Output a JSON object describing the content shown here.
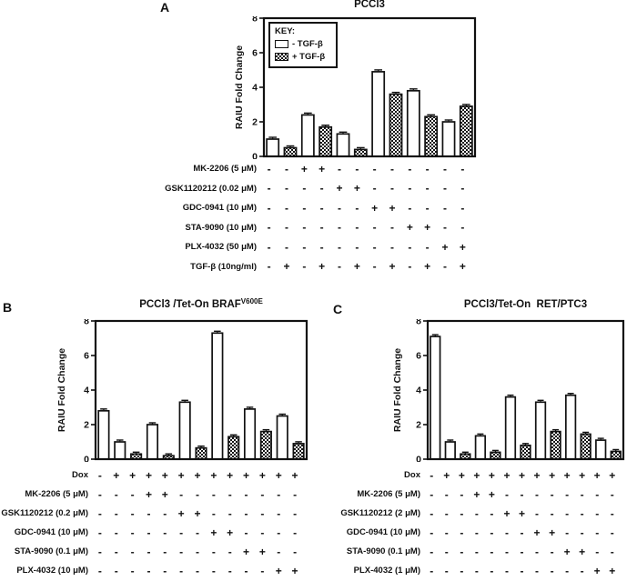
{
  "figure": {
    "background": "#ffffff",
    "ink_color": "#111111"
  },
  "key": {
    "title": "KEY:",
    "entries": [
      {
        "label": "- TGF-β",
        "style": "white"
      },
      {
        "label": "+ TGF-β",
        "style": "hatched"
      }
    ]
  },
  "chart_data": [
    {
      "type": "bar",
      "panel_label": "A",
      "title": "PCCl3",
      "title_sup": "",
      "ylabel": "RAIU Fold Change",
      "ylim": [
        0,
        8
      ],
      "yticks": [
        0,
        2,
        4,
        6,
        8
      ],
      "legend_position": "top-left-inside",
      "bar_style_meaning": {
        "white": "- TGF-β",
        "hatched": "+ TGF-β"
      },
      "bars": [
        {
          "value": 1.0,
          "err": 0.1,
          "style": "white"
        },
        {
          "value": 0.5,
          "err": 0.05,
          "style": "hatched"
        },
        {
          "value": 2.4,
          "err": 0.1,
          "style": "white"
        },
        {
          "value": 1.7,
          "err": 0.08,
          "style": "hatched"
        },
        {
          "value": 1.3,
          "err": 0.08,
          "style": "white"
        },
        {
          "value": 0.4,
          "err": 0.05,
          "style": "hatched"
        },
        {
          "value": 4.9,
          "err": 0.1,
          "style": "white"
        },
        {
          "value": 3.6,
          "err": 0.08,
          "style": "hatched"
        },
        {
          "value": 3.8,
          "err": 0.08,
          "style": "white"
        },
        {
          "value": 2.3,
          "err": 0.08,
          "style": "hatched"
        },
        {
          "value": 2.0,
          "err": 0.08,
          "style": "white"
        },
        {
          "value": 2.9,
          "err": 0.08,
          "style": "hatched"
        }
      ],
      "treatment_matrix": [
        {
          "label": "MK-2206 (5 μM)",
          "signs": [
            "-",
            "-",
            "+",
            "+",
            "-",
            "-",
            "-",
            "-",
            "-",
            "-",
            "-",
            "-"
          ]
        },
        {
          "label": "GSK1120212 (0.02 μM)",
          "signs": [
            "-",
            "-",
            "-",
            "-",
            "+",
            "+",
            "-",
            "-",
            "-",
            "-",
            "-",
            "-"
          ]
        },
        {
          "label": "GDC-0941 (10 μM)",
          "signs": [
            "-",
            "-",
            "-",
            "-",
            "-",
            "-",
            "+",
            "+",
            "-",
            "-",
            "-",
            "-"
          ]
        },
        {
          "label": "STA-9090 (10 μM)",
          "signs": [
            "-",
            "-",
            "-",
            "-",
            "-",
            "-",
            "-",
            "-",
            "+",
            "+",
            "-",
            "-"
          ]
        },
        {
          "label": "PLX-4032 (50 μM)",
          "signs": [
            "-",
            "-",
            "-",
            "-",
            "-",
            "-",
            "-",
            "-",
            "-",
            "-",
            "+",
            "+"
          ]
        },
        {
          "label": "TGF-β (10ng/ml)",
          "signs": [
            "-",
            "+",
            "-",
            "+",
            "-",
            "+",
            "-",
            "+",
            "-",
            "+",
            "-",
            "+"
          ]
        }
      ]
    },
    {
      "type": "bar",
      "panel_label": "B",
      "title": "PCCl3 /Tet-On BRAF",
      "title_sup": "V600E",
      "ylabel": "RAIU Fold Change",
      "ylim": [
        0,
        8
      ],
      "yticks": [
        0,
        2,
        4,
        6,
        8
      ],
      "bar_style_meaning": {
        "white": "- TGF-β",
        "hatched": "+ TGF-β"
      },
      "bars": [
        {
          "value": 2.8,
          "err": 0.08,
          "style": "white"
        },
        {
          "value": 1.0,
          "err": 0.08,
          "style": "white"
        },
        {
          "value": 0.3,
          "err": 0.05,
          "style": "hatched"
        },
        {
          "value": 2.0,
          "err": 0.08,
          "style": "white"
        },
        {
          "value": 0.2,
          "err": 0.05,
          "style": "hatched"
        },
        {
          "value": 3.3,
          "err": 0.08,
          "style": "white"
        },
        {
          "value": 0.65,
          "err": 0.05,
          "style": "hatched"
        },
        {
          "value": 7.3,
          "err": 0.1,
          "style": "white"
        },
        {
          "value": 1.3,
          "err": 0.06,
          "style": "hatched"
        },
        {
          "value": 2.9,
          "err": 0.08,
          "style": "white"
        },
        {
          "value": 1.6,
          "err": 0.06,
          "style": "hatched"
        },
        {
          "value": 2.5,
          "err": 0.08,
          "style": "white"
        },
        {
          "value": 0.9,
          "err": 0.05,
          "style": "hatched"
        }
      ],
      "treatment_matrix": [
        {
          "label": "Dox",
          "signs": [
            "-",
            "+",
            "+",
            "+",
            "+",
            "+",
            "+",
            "+",
            "+",
            "+",
            "+",
            "+",
            "+"
          ]
        },
        {
          "label": "MK-2206 (5 μM)",
          "signs": [
            "-",
            "-",
            "-",
            "+",
            "+",
            "-",
            "-",
            "-",
            "-",
            "-",
            "-",
            "-",
            "-"
          ]
        },
        {
          "label": "GSK1120212 (0.2 μM)",
          "signs": [
            "-",
            "-",
            "-",
            "-",
            "-",
            "+",
            "+",
            "-",
            "-",
            "-",
            "-",
            "-",
            "-"
          ]
        },
        {
          "label": "GDC-0941 (10 μM)",
          "signs": [
            "-",
            "-",
            "-",
            "-",
            "-",
            "-",
            "-",
            "+",
            "+",
            "-",
            "-",
            "-",
            "-"
          ]
        },
        {
          "label": "STA-9090 (0.1 μM)",
          "signs": [
            "-",
            "-",
            "-",
            "-",
            "-",
            "-",
            "-",
            "-",
            "-",
            "+",
            "+",
            "-",
            "-"
          ]
        },
        {
          "label": "PLX-4032 (10 μM)",
          "signs": [
            "-",
            "-",
            "-",
            "-",
            "-",
            "-",
            "-",
            "-",
            "-",
            "-",
            "-",
            "+",
            "+"
          ]
        }
      ]
    },
    {
      "type": "bar",
      "panel_label": "C",
      "title": "PCCl3/Tet-On  RET/PTC3",
      "title_sup": "",
      "ylabel": "RAIU Fold Change",
      "ylim": [
        0,
        8
      ],
      "yticks": [
        0,
        2,
        4,
        6,
        8
      ],
      "bar_style_meaning": {
        "white": "- TGF-β",
        "hatched": "+ TGF-β"
      },
      "bars": [
        {
          "value": 7.1,
          "err": 0.08,
          "style": "white"
        },
        {
          "value": 1.0,
          "err": 0.06,
          "style": "white"
        },
        {
          "value": 0.3,
          "err": 0.05,
          "style": "hatched"
        },
        {
          "value": 1.35,
          "err": 0.06,
          "style": "white"
        },
        {
          "value": 0.4,
          "err": 0.05,
          "style": "hatched"
        },
        {
          "value": 3.6,
          "err": 0.08,
          "style": "white"
        },
        {
          "value": 0.8,
          "err": 0.05,
          "style": "hatched"
        },
        {
          "value": 3.3,
          "err": 0.08,
          "style": "white"
        },
        {
          "value": 1.6,
          "err": 0.06,
          "style": "hatched"
        },
        {
          "value": 3.7,
          "err": 0.08,
          "style": "white"
        },
        {
          "value": 1.45,
          "err": 0.06,
          "style": "hatched"
        },
        {
          "value": 1.1,
          "err": 0.06,
          "style": "white"
        },
        {
          "value": 0.45,
          "err": 0.05,
          "style": "hatched"
        }
      ],
      "treatment_matrix": [
        {
          "label": "Dox",
          "signs": [
            "-",
            "+",
            "+",
            "+",
            "+",
            "+",
            "+",
            "+",
            "+",
            "+",
            "+",
            "+",
            "+"
          ]
        },
        {
          "label": "MK-2206 (5 μM)",
          "signs": [
            "-",
            "-",
            "-",
            "+",
            "+",
            "-",
            "-",
            "-",
            "-",
            "-",
            "-",
            "-",
            "-"
          ]
        },
        {
          "label": "GSK1120212 (2 μM)",
          "signs": [
            "-",
            "-",
            "-",
            "-",
            "-",
            "+",
            "+",
            "-",
            "-",
            "-",
            "-",
            "-",
            "-"
          ]
        },
        {
          "label": "GDC-0941 (10 μM)",
          "signs": [
            "-",
            "-",
            "-",
            "-",
            "-",
            "-",
            "-",
            "+",
            "+",
            "-",
            "-",
            "-",
            "-"
          ]
        },
        {
          "label": "STA-9090 (0.1 μM)",
          "signs": [
            "-",
            "-",
            "-",
            "-",
            "-",
            "-",
            "-",
            "-",
            "-",
            "+",
            "+",
            "-",
            "-"
          ]
        },
        {
          "label": "PLX-4032 (1 μM)",
          "signs": [
            "-",
            "-",
            "-",
            "-",
            "-",
            "-",
            "-",
            "-",
            "-",
            "-",
            "-",
            "+",
            "+"
          ]
        }
      ]
    }
  ]
}
